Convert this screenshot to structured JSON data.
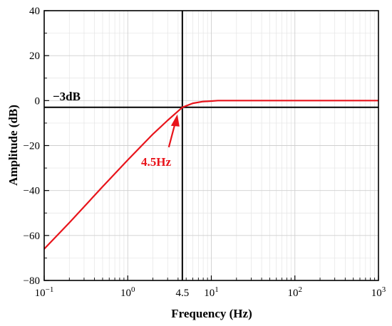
{
  "chart_data": {
    "type": "line",
    "title": "",
    "xlabel": "Frequency (Hz)",
    "ylabel": "Amplitude (dB)",
    "xscale": "log",
    "xlim": [
      0.1,
      1000
    ],
    "ylim": [
      -80,
      40
    ],
    "yticks": [
      -80,
      -60,
      -40,
      -20,
      0,
      20,
      40
    ],
    "ytick_labels": [
      "−80",
      "−60",
      "−40",
      "−20",
      "0",
      "20",
      "40"
    ],
    "xticks": [
      {
        "value": 0.1,
        "base": "10",
        "exp": "−1"
      },
      {
        "value": 1,
        "base": "10",
        "exp": "0"
      },
      {
        "value": 4.5,
        "text": "4.5"
      },
      {
        "value": 10,
        "base": "10",
        "exp": "1"
      },
      {
        "value": 100,
        "base": "10",
        "exp": "2"
      },
      {
        "value": 1000,
        "base": "10",
        "exp": "3"
      }
    ],
    "grid": true,
    "series": [
      {
        "color": "#e8141b",
        "x": [
          0.1,
          0.2,
          0.5,
          1,
          2,
          3,
          4.5,
          6,
          8,
          10,
          12,
          20,
          50,
          100,
          1000
        ],
        "y": [
          -66,
          -54.3,
          -38.3,
          -26.4,
          -14.9,
          -8.8,
          -3,
          -1.2,
          -0.4,
          -0.2,
          0,
          0,
          0,
          0,
          0
        ]
      }
    ],
    "reference_lines": {
      "horizontal_y": -3,
      "vertical_x": 4.5,
      "color": "#000000"
    },
    "annotations": {
      "minus3db": "−3dB",
      "cutoff": "4.5Hz"
    }
  }
}
